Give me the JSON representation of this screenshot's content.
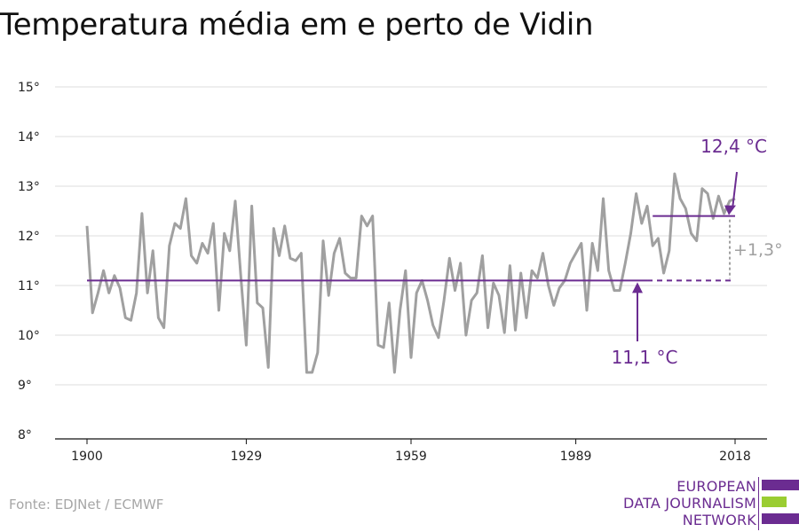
{
  "title": "Temperatura média em e perto de Vidin",
  "source": "Fonte: EDJNet / ECMWF",
  "logo": {
    "lines": [
      "EUROPEAN",
      "DATA JOURNALISM",
      "NETWORK"
    ],
    "colors": {
      "purple": "#6b2c91",
      "green": "#9acd32"
    }
  },
  "colors": {
    "series": "#a0a0a0",
    "average": "#6b2c91",
    "delta": "#a0a0a0",
    "grid": "#dddddd",
    "axis": "#111111"
  },
  "chart_data": {
    "type": "line",
    "title": "Temperatura média em e perto de Vidin",
    "xlabel": "",
    "ylabel": "",
    "ylim": [
      8,
      15
    ],
    "xlim": [
      1900,
      2018
    ],
    "grid": true,
    "x_ticks": [
      "1900",
      "1929",
      "1959",
      "1989",
      "2018"
    ],
    "y_ticks": [
      "8°",
      "9°",
      "10°",
      "11°",
      "12°",
      "13°",
      "14°",
      "15°"
    ],
    "x": [
      1900,
      1901,
      1902,
      1903,
      1904,
      1905,
      1906,
      1907,
      1908,
      1909,
      1910,
      1911,
      1912,
      1913,
      1914,
      1915,
      1916,
      1917,
      1918,
      1919,
      1920,
      1921,
      1922,
      1923,
      1924,
      1925,
      1926,
      1927,
      1928,
      1929,
      1930,
      1931,
      1932,
      1933,
      1934,
      1935,
      1936,
      1937,
      1938,
      1939,
      1940,
      1941,
      1942,
      1943,
      1944,
      1945,
      1946,
      1947,
      1948,
      1949,
      1950,
      1951,
      1952,
      1953,
      1954,
      1955,
      1956,
      1957,
      1958,
      1959,
      1960,
      1961,
      1962,
      1963,
      1964,
      1965,
      1966,
      1967,
      1968,
      1969,
      1970,
      1971,
      1972,
      1973,
      1974,
      1975,
      1976,
      1977,
      1978,
      1979,
      1980,
      1981,
      1982,
      1983,
      1984,
      1985,
      1986,
      1987,
      1988,
      1989,
      1990,
      1991,
      1992,
      1993,
      1994,
      1995,
      1996,
      1997,
      1998,
      1999,
      2000,
      2001,
      2002,
      2003,
      2004,
      2005,
      2006,
      2007,
      2008,
      2009,
      2010,
      2011,
      2012,
      2013,
      2014,
      2015,
      2016,
      2017,
      2018
    ],
    "series": [
      {
        "values": [
          12.2,
          10.45,
          10.85,
          11.3,
          10.85,
          11.2,
          10.95,
          10.35,
          10.3,
          10.85,
          12.45,
          10.85,
          11.7,
          10.35,
          10.15,
          11.8,
          12.25,
          12.15,
          12.75,
          11.6,
          11.45,
          11.85,
          11.65,
          12.25,
          10.5,
          12.05,
          11.7,
          12.7,
          11.2,
          9.8,
          12.6,
          10.65,
          10.55,
          9.35,
          12.15,
          11.6,
          12.2,
          11.55,
          11.5,
          11.65,
          9.25,
          9.25,
          9.65,
          11.9,
          10.8,
          11.65,
          11.95,
          11.25,
          11.15,
          11.15,
          12.4,
          12.2,
          12.4,
          9.8,
          9.75,
          10.65,
          9.25,
          10.5,
          11.3,
          9.55,
          10.85,
          11.1,
          10.7,
          10.2,
          9.95,
          10.7,
          11.55,
          10.9,
          11.45,
          10.0,
          10.7,
          10.85,
          11.6,
          10.15,
          11.05,
          10.8,
          10.05,
          11.4,
          10.1,
          11.25,
          10.35,
          11.3,
          11.15,
          11.65,
          11.0,
          10.6,
          10.95,
          11.1,
          11.45,
          11.65,
          11.85,
          10.5,
          11.85,
          11.3,
          12.75,
          11.3,
          10.9,
          10.9,
          11.45,
          12.05,
          12.85,
          12.25,
          12.6,
          11.8,
          11.95,
          11.25,
          11.7,
          13.25,
          12.75,
          12.55,
          12.05,
          11.9,
          12.95,
          12.85,
          12.35,
          12.8,
          12.45,
          12.7,
          12.75
        ]
      }
    ],
    "annotations": {
      "avg_start": {
        "value": 11.1,
        "label": "11,1 °C",
        "from": 1900,
        "to": 2018
      },
      "avg_end": {
        "value": 12.4,
        "label": "12,4 °C",
        "from": 2003,
        "to": 2018
      },
      "delta": "+1,3°"
    }
  }
}
